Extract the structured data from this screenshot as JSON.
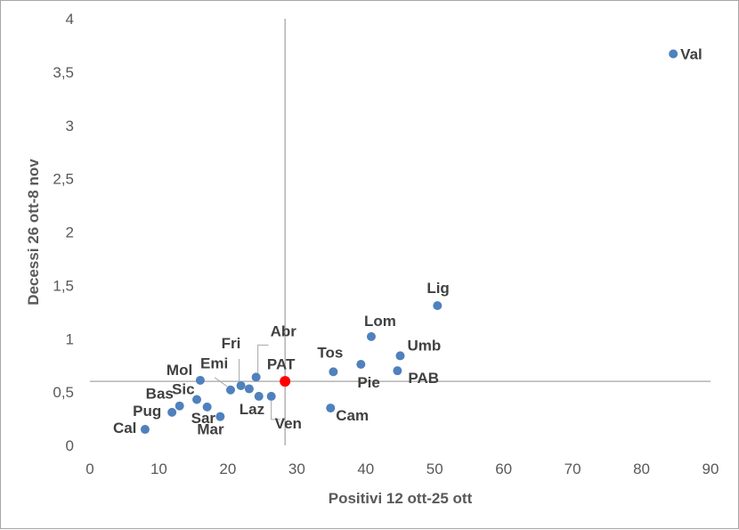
{
  "chart_data": {
    "type": "scatter",
    "title": "",
    "xlabel": "Positivi 12 ott-25 ott",
    "ylabel": "Decessi 26 ott-8 nov",
    "xlim": [
      0,
      90
    ],
    "ylim": [
      0,
      4
    ],
    "x_ticks": [
      "0",
      "10",
      "20",
      "30",
      "40",
      "50",
      "60",
      "70",
      "80",
      "90"
    ],
    "y_ticks": [
      "0",
      "0,5",
      "1",
      "1,5",
      "2",
      "2,5",
      "3",
      "3,5",
      "4"
    ],
    "grid": false,
    "reference_lines": {
      "x": 28.3,
      "y": 0.6
    },
    "reference_point": {
      "x": 28.3,
      "y": 0.6,
      "color": "#ff0000"
    },
    "series_color": "#4f81bd",
    "points": [
      {
        "label": "Val",
        "x": 84.6,
        "y": 3.67
      },
      {
        "label": "Lig",
        "x": 50.4,
        "y": 1.31
      },
      {
        "label": "Lom",
        "x": 40.8,
        "y": 1.02
      },
      {
        "label": "Umb",
        "x": 45.0,
        "y": 0.84
      },
      {
        "label": "Tos",
        "x": 35.3,
        "y": 0.69
      },
      {
        "label": "Pie",
        "x": 39.3,
        "y": 0.76
      },
      {
        "label": "PAB",
        "x": 44.6,
        "y": 0.7
      },
      {
        "label": "Cam",
        "x": 34.9,
        "y": 0.35
      },
      {
        "label": "Abr",
        "x": 24.1,
        "y": 0.64
      },
      {
        "label": "PAT",
        "x": 23.1,
        "y": 0.53
      },
      {
        "label": "Fri",
        "x": 21.9,
        "y": 0.56
      },
      {
        "label": "Emi",
        "x": 20.4,
        "y": 0.52
      },
      {
        "label": "Mol",
        "x": 16.0,
        "y": 0.61
      },
      {
        "label": "Laz",
        "x": 24.5,
        "y": 0.46
      },
      {
        "label": "Ven",
        "x": 26.3,
        "y": 0.46
      },
      {
        "label": "Sic",
        "x": 15.5,
        "y": 0.43
      },
      {
        "label": "Bas",
        "x": 13.0,
        "y": 0.37
      },
      {
        "label": "Pug",
        "x": 11.9,
        "y": 0.31
      },
      {
        "label": "Sar",
        "x": 17.0,
        "y": 0.36
      },
      {
        "label": "Mar",
        "x": 18.9,
        "y": 0.27
      },
      {
        "label": "Cal",
        "x": 8.0,
        "y": 0.15
      }
    ]
  }
}
